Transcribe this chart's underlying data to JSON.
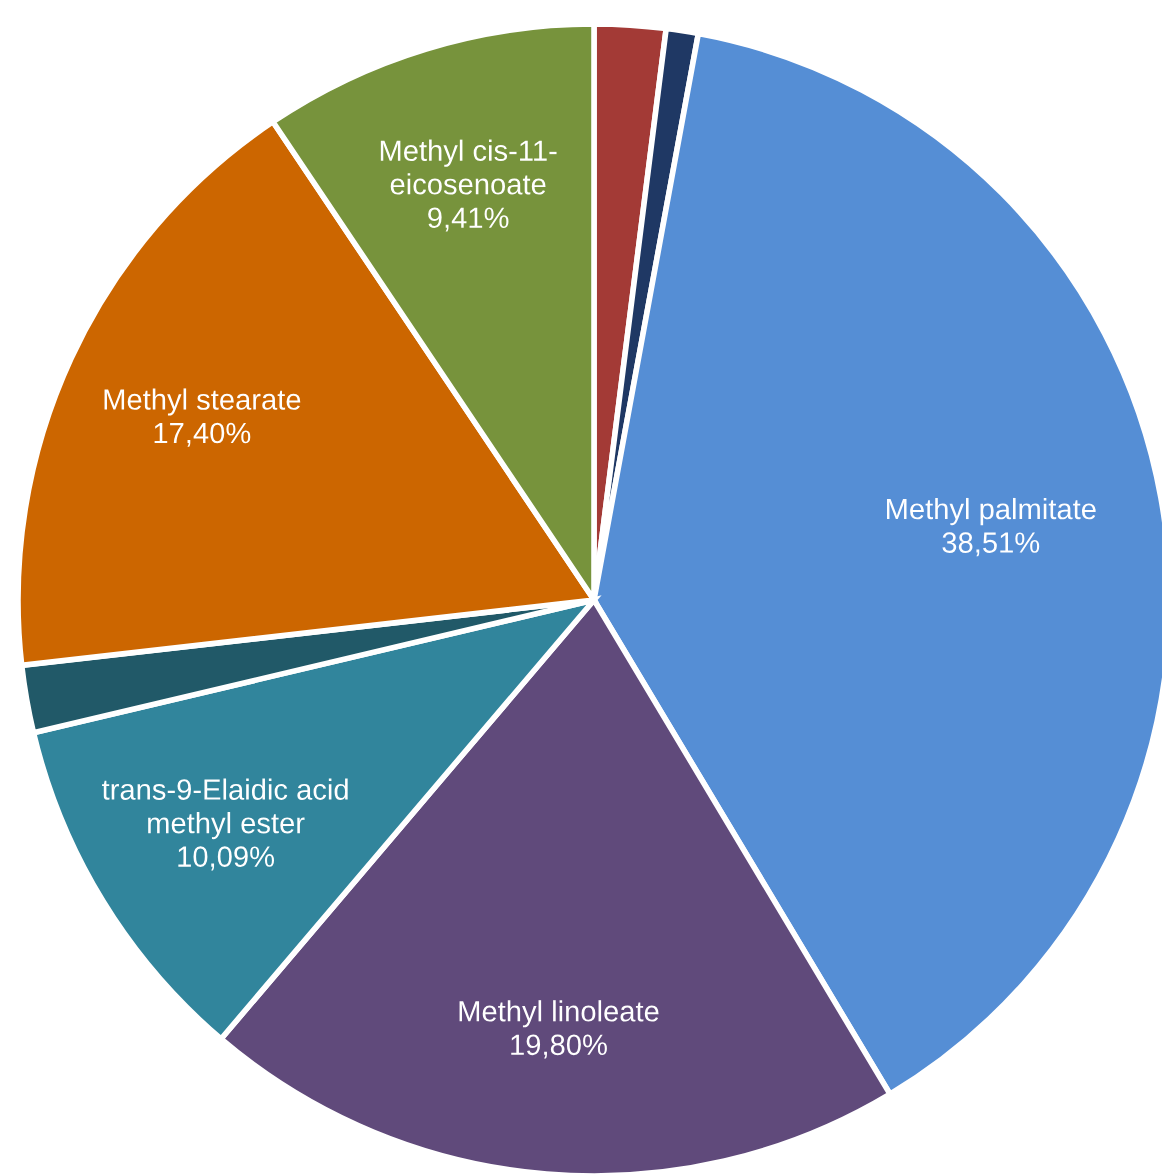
{
  "chart_data": {
    "type": "pie",
    "categories": [
      null,
      null,
      "Methyl palmitate",
      "Methyl linoleate",
      "trans-9-Elaidic acid\nmethyl ester",
      null,
      "Methyl stearate",
      "Methyl cis-11-\neicosenoate"
    ],
    "values": [
      2.0,
      0.9,
      38.51,
      19.8,
      10.09,
      1.89,
      17.4,
      9.41
    ],
    "value_labels": [
      null,
      null,
      "38,51%",
      "19,80%",
      "10,09%",
      null,
      "17,40%",
      "9,41%"
    ],
    "colors": [
      "#a33a36",
      "#1f3864",
      "#558ed5",
      "#604a7b",
      "#31859c",
      "#215968",
      "#cc6600",
      "#77933c"
    ],
    "legend": false
  }
}
